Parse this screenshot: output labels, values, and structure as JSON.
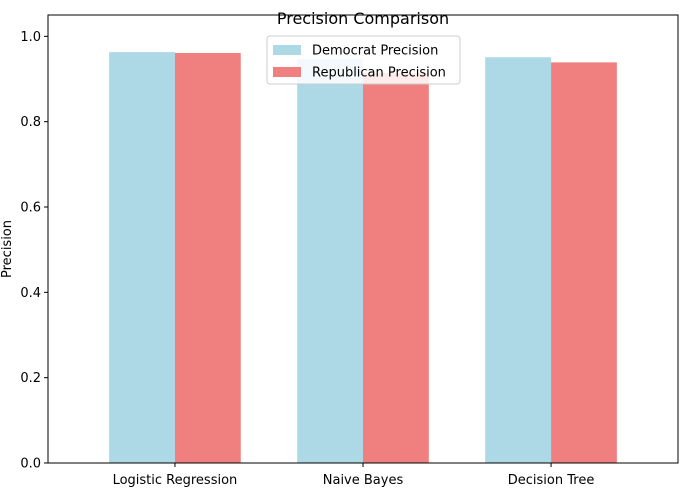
{
  "chart_data": {
    "type": "bar",
    "title": "Precision Comparison",
    "xlabel": "",
    "ylabel": "Precision",
    "categories": [
      "Logistic Regression",
      "Naive Bayes",
      "Decision Tree"
    ],
    "series": [
      {
        "name": "Democrat Precision",
        "color": "#add8e6",
        "values": [
          0.963,
          0.947,
          0.951
        ]
      },
      {
        "name": "Republican Precision",
        "color": "#f08080",
        "values": [
          0.961,
          0.914,
          0.939
        ]
      }
    ],
    "ylim": [
      0,
      1.0
    ],
    "yticks": [
      "0.0",
      "0.2",
      "0.4",
      "0.6",
      "0.8",
      "1.0"
    ],
    "grid": false,
    "legend_position": "top-center"
  }
}
